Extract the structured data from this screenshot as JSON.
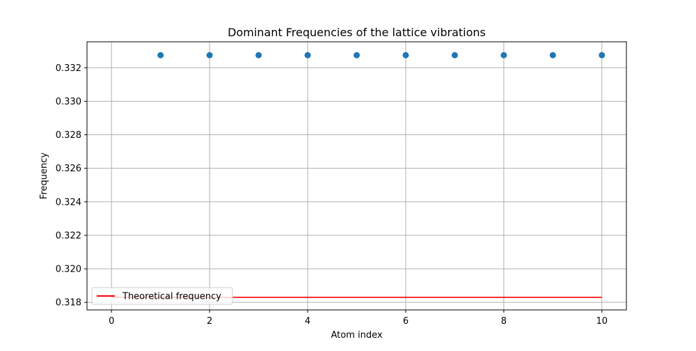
{
  "chart_data": {
    "type": "scatter",
    "title": "Dominant Frequencies of the lattice vibrations",
    "xlabel": "Atom index",
    "ylabel": "Frequency",
    "xlim": [
      -0.5,
      10.5
    ],
    "ylim": [
      0.31755,
      0.33355
    ],
    "xticks": [
      0,
      2,
      4,
      6,
      8,
      10
    ],
    "xtick_labels": [
      "0",
      "2",
      "4",
      "6",
      "8",
      "10"
    ],
    "yticks": [
      0.318,
      0.32,
      0.322,
      0.324,
      0.326,
      0.328,
      0.33,
      0.332
    ],
    "ytick_labels": [
      "0.318",
      "0.320",
      "0.322",
      "0.324",
      "0.326",
      "0.328",
      "0.330",
      "0.332"
    ],
    "grid": true,
    "legend_position": "lower-left",
    "series": [
      {
        "kind": "scatter",
        "color": "#1f77b4",
        "x": [
          1,
          2,
          3,
          4,
          5,
          6,
          7,
          8,
          9,
          10
        ],
        "y": [
          0.33275,
          0.33275,
          0.33275,
          0.33275,
          0.33275,
          0.33275,
          0.33275,
          0.33275,
          0.33275,
          0.33275
        ]
      },
      {
        "kind": "line",
        "name": "Theoretical frequency",
        "color": "#ff0000",
        "x": [
          0,
          10
        ],
        "y": [
          0.3183,
          0.3183
        ]
      }
    ]
  }
}
